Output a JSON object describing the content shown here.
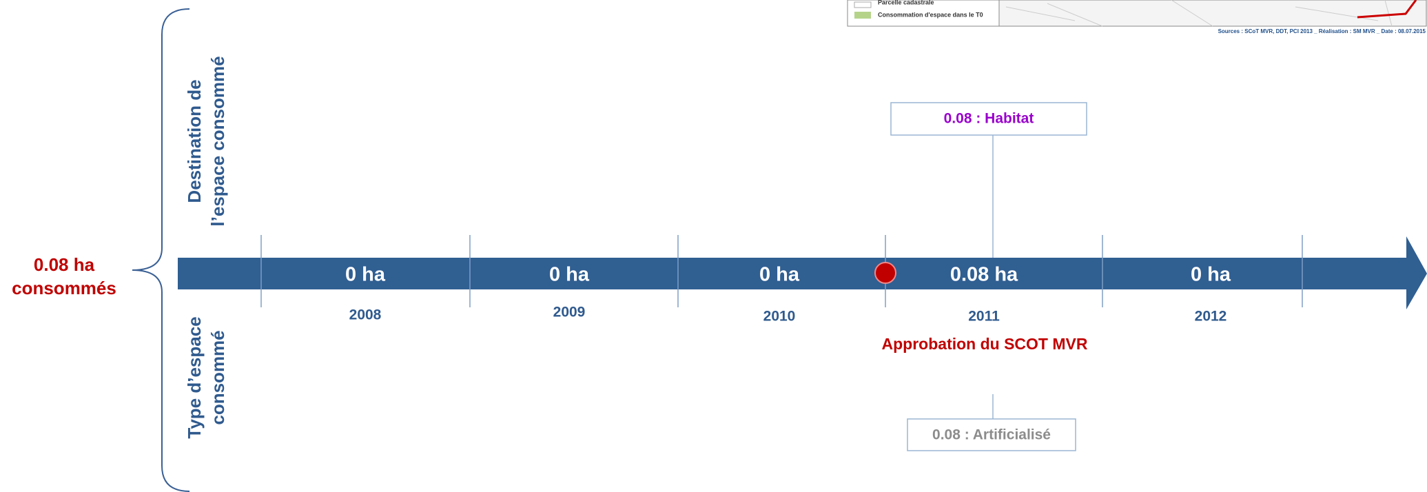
{
  "total": {
    "line1": "0.08 ha",
    "line2": "consommés"
  },
  "side_labels": {
    "top": [
      "Destination de",
      "l’espace consommé"
    ],
    "bottom": [
      "Type d’espace",
      "consommé"
    ]
  },
  "timeline": [
    {
      "value": "0 ha",
      "year": "2008"
    },
    {
      "value": "0 ha",
      "year": "2009"
    },
    {
      "value": "0 ha",
      "year": "2010"
    },
    {
      "value": "0.08 ha",
      "year": "2011"
    },
    {
      "value": "0 ha",
      "year": "2012"
    }
  ],
  "event": "Approbation du SCOT MVR",
  "destination": "0.08 : Habitat",
  "type": "0.08 : Artificialisé",
  "map_legend": {
    "items": [
      "Parcelle cadastrale",
      "Consommation d'espace dans le T0"
    ],
    "sources": "Sources : SCoT MVR, DDT, PCI 2013 _ Réalisation : SM MVR _ Date : 08.07.2015"
  }
}
